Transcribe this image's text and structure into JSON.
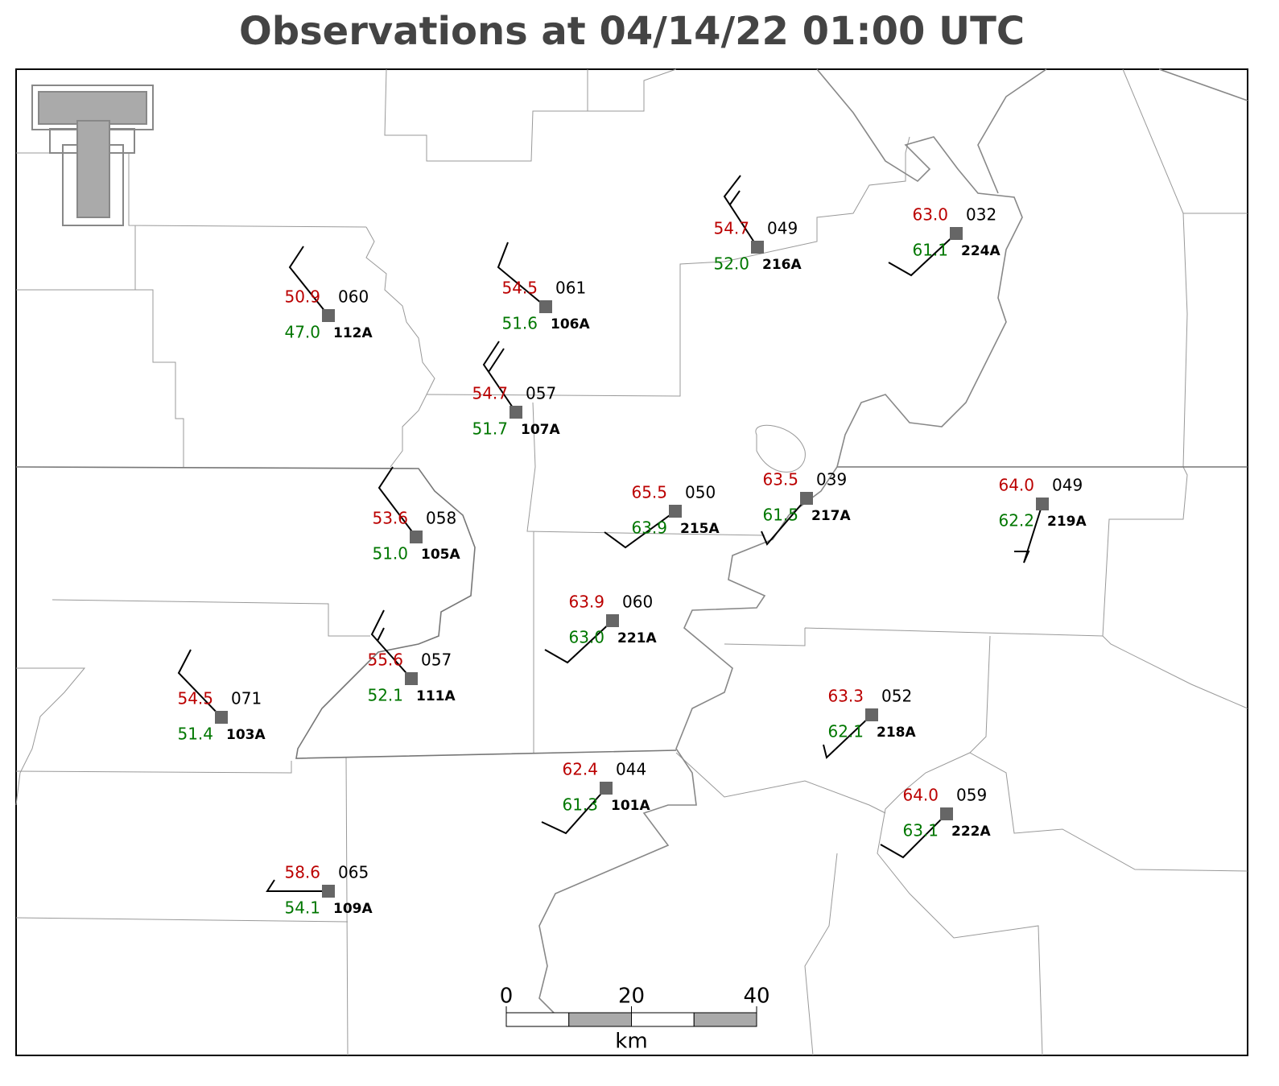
{
  "title": "Observations at 04/14/22 01:00 UTC",
  "stations": [
    {
      "id": "112A",
      "temperature": "50.9",
      "pressure": "060",
      "dewpoint": "47.0"
    },
    {
      "id": "106A",
      "temperature": "54.5",
      "pressure": "061",
      "dewpoint": "51.6"
    },
    {
      "id": "107A",
      "temperature": "54.7",
      "pressure": "057",
      "dewpoint": "51.7"
    },
    {
      "id": "216A",
      "temperature": "54.7",
      "pressure": "049",
      "dewpoint": "52.0"
    },
    {
      "id": "224A",
      "temperature": "63.0",
      "pressure": "032",
      "dewpoint": "61.1"
    },
    {
      "id": "105A",
      "temperature": "53.6",
      "pressure": "058",
      "dewpoint": "51.0"
    },
    {
      "id": "215A",
      "temperature": "65.5",
      "pressure": "050",
      "dewpoint": "63.9"
    },
    {
      "id": "217A",
      "temperature": "63.5",
      "pressure": "039",
      "dewpoint": "61.5"
    },
    {
      "id": "219A",
      "temperature": "64.0",
      "pressure": "049",
      "dewpoint": "62.2"
    },
    {
      "id": "221A",
      "temperature": "63.9",
      "pressure": "060",
      "dewpoint": "63.0"
    },
    {
      "id": "111A",
      "temperature": "55.6",
      "pressure": "057",
      "dewpoint": "52.1"
    },
    {
      "id": "103A",
      "temperature": "54.5",
      "pressure": "071",
      "dewpoint": "51.4"
    },
    {
      "id": "218A",
      "temperature": "63.3",
      "pressure": "052",
      "dewpoint": "62.1"
    },
    {
      "id": "101A",
      "temperature": "62.4",
      "pressure": "044",
      "dewpoint": "61.3"
    },
    {
      "id": "222A",
      "temperature": "64.0",
      "pressure": "059",
      "dewpoint": "63.1"
    },
    {
      "id": "109A",
      "temperature": "58.6",
      "pressure": "065",
      "dewpoint": "54.1"
    }
  ],
  "scale_bar": {
    "ticks": [
      0,
      20,
      40
    ],
    "unit": "km"
  }
}
